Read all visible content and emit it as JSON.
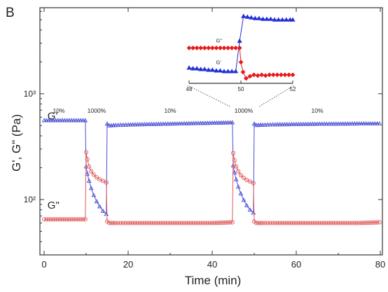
{
  "chart_data": [
    {
      "type": "scatter",
      "panel_label": "B",
      "xlabel": "Time (min)",
      "ylabel": "G', G\" (Pa)",
      "xlim": [
        -1,
        80.5
      ],
      "ylim": [
        30,
        6500
      ],
      "yscale": "log",
      "x_ticks": [
        0,
        20,
        40,
        60,
        80
      ],
      "x_tick_labels": [
        "0",
        "20",
        "40",
        "60",
        "80"
      ],
      "y_ticks": [
        100,
        1000
      ],
      "y_tick_labels": [
        "10²",
        "10³"
      ],
      "grid": false,
      "strain_annotations": [
        {
          "x": 3.5,
          "label": "10%"
        },
        {
          "x": 12.5,
          "label": "1000%"
        },
        {
          "x": 30,
          "label": "10%"
        },
        {
          "x": 47.5,
          "label": "1000%"
        },
        {
          "x": 65,
          "label": "10%"
        }
      ],
      "series": [
        {
          "name": "G'",
          "label_x": 0.8,
          "label_y": 570,
          "color": "#4a4fd6",
          "marker": "triangle",
          "x": [
            0,
            9.8,
            10.0,
            10.3,
            10.7,
            11.2,
            11.8,
            12.5,
            13.2,
            14.0,
            14.8,
            15.0,
            15.5,
            17,
            20,
            25,
            30,
            35,
            40,
            44.8,
            45.0,
            45.3,
            45.7,
            46.2,
            46.8,
            47.5,
            48.2,
            49.0,
            49.8,
            50.0,
            50.5,
            52,
            55,
            60,
            65,
            70,
            75,
            79.8
          ],
          "y": [
            560,
            560,
            205,
            175,
            150,
            128,
            110,
            96,
            86,
            78,
            73,
            520,
            500,
            505,
            510,
            515,
            520,
            525,
            530,
            535,
            210,
            180,
            155,
            132,
            114,
            99,
            88,
            80,
            75,
            520,
            505,
            508,
            512,
            515,
            518,
            520,
            522,
            522
          ]
        },
        {
          "name": "G\"",
          "label_x": 0.8,
          "label_y": 82,
          "color": "#e05a5a",
          "marker": "circle",
          "x": [
            0,
            9.8,
            10.0,
            10.3,
            10.7,
            11.2,
            11.8,
            12.5,
            13.2,
            14.0,
            14.8,
            15.0,
            15.5,
            17,
            20,
            25,
            30,
            35,
            40,
            44.8,
            45.0,
            45.3,
            45.7,
            46.2,
            46.8,
            47.5,
            48.2,
            49.0,
            49.8,
            50.0,
            50.5,
            52,
            55,
            60,
            65,
            70,
            75,
            79.8
          ],
          "y": [
            65,
            65,
            280,
            240,
            205,
            185,
            172,
            162,
            155,
            150,
            145,
            62,
            60,
            60,
            60,
            60,
            60,
            60,
            60,
            61,
            275,
            235,
            205,
            185,
            170,
            160,
            153,
            148,
            143,
            62,
            60,
            60,
            60,
            60,
            60,
            60,
            60,
            61
          ]
        }
      ]
    },
    {
      "type": "scatter",
      "role": "inset",
      "x_ticks": [
        48,
        50,
        52
      ],
      "x_tick_labels": [
        "48",
        "50",
        "52"
      ],
      "xlim": [
        48,
        52
      ],
      "ylim": [
        0,
        1
      ],
      "series": [
        {
          "name": "G'",
          "color": "#1f2fd6",
          "marker": "triangle",
          "x": [
            48.0,
            48.15,
            48.3,
            48.45,
            48.6,
            48.75,
            48.9,
            49.05,
            49.2,
            49.35,
            49.5,
            49.65,
            49.8,
            49.95,
            50.1,
            50.25,
            50.4,
            50.55,
            50.7,
            50.85,
            51.0,
            51.15,
            51.3,
            51.45,
            51.6,
            51.75,
            51.9,
            52.0
          ],
          "y": [
            0.22,
            0.21,
            0.21,
            0.2,
            0.2,
            0.19,
            0.19,
            0.18,
            0.18,
            0.17,
            0.17,
            0.17,
            0.17,
            0.6,
            0.95,
            0.94,
            0.93,
            0.92,
            0.92,
            0.91,
            0.91,
            0.91,
            0.9,
            0.9,
            0.9,
            0.9,
            0.9,
            0.9
          ]
        },
        {
          "name": "G\"",
          "color": "#e81a1a",
          "marker": "diamond",
          "x": [
            48.0,
            48.15,
            48.3,
            48.45,
            48.6,
            48.75,
            48.9,
            49.05,
            49.2,
            49.35,
            49.5,
            49.65,
            49.8,
            49.95,
            50.0,
            50.08,
            50.2,
            50.35,
            50.5,
            50.65,
            50.8,
            50.95,
            51.1,
            51.25,
            51.4,
            51.55,
            51.7,
            51.85,
            52.0
          ],
          "y": [
            0.5,
            0.5,
            0.5,
            0.5,
            0.5,
            0.5,
            0.5,
            0.5,
            0.5,
            0.5,
            0.5,
            0.5,
            0.5,
            0.5,
            0.3,
            0.16,
            0.07,
            0.1,
            0.12,
            0.11,
            0.12,
            0.11,
            0.12,
            0.12,
            0.12,
            0.12,
            0.12,
            0.12,
            0.12
          ]
        }
      ]
    }
  ]
}
